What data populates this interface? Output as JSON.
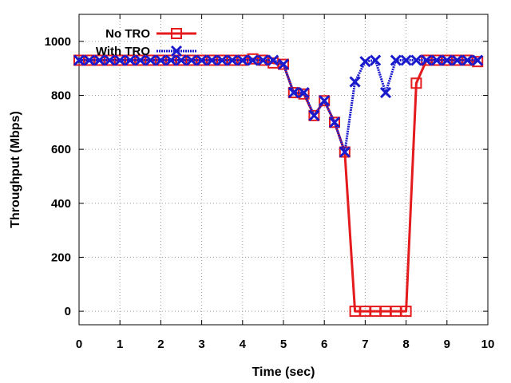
{
  "chart_data": {
    "type": "line",
    "title": "",
    "xlabel": "Time (sec)",
    "ylabel": "Throughput (Mbps)",
    "xlim": [
      0,
      10
    ],
    "ylim": [
      -50,
      1100
    ],
    "xticks": [
      0,
      1,
      2,
      3,
      4,
      5,
      6,
      7,
      8,
      9,
      10
    ],
    "yticks": [
      0,
      200,
      400,
      600,
      800,
      1000
    ],
    "grid": true,
    "legend_position": "top-left",
    "series": [
      {
        "name": "No TRO",
        "color": "#e41a1c",
        "marker": "square",
        "line_style": "solid",
        "x": [
          0,
          0.25,
          0.5,
          0.75,
          1,
          1.25,
          1.5,
          1.75,
          2,
          2.25,
          2.5,
          2.75,
          3,
          3.25,
          3.5,
          3.75,
          4,
          4.25,
          4.5,
          4.75,
          5,
          5.25,
          5.5,
          5.75,
          6,
          6.25,
          6.5,
          6.75,
          7,
          7.25,
          7.5,
          7.75,
          8,
          8.25,
          8.5,
          8.75,
          9,
          9.25,
          9.5,
          9.75
        ],
        "y": [
          930,
          930,
          930,
          930,
          930,
          930,
          930,
          930,
          930,
          930,
          930,
          930,
          930,
          930,
          930,
          930,
          930,
          935,
          930,
          920,
          915,
          810,
          805,
          725,
          780,
          700,
          590,
          0,
          0,
          0,
          0,
          0,
          0,
          845,
          930,
          930,
          930,
          930,
          930,
          925
        ]
      },
      {
        "name": "With TRO",
        "color": "#1a1acd",
        "marker": "x",
        "line_style": "dotted",
        "x": [
          0,
          0.25,
          0.5,
          0.75,
          1,
          1.25,
          1.5,
          1.75,
          2,
          2.25,
          2.5,
          2.75,
          3,
          3.25,
          3.5,
          3.75,
          4,
          4.25,
          4.5,
          4.75,
          5,
          5.25,
          5.5,
          5.75,
          6,
          6.25,
          6.5,
          6.75,
          7,
          7.25,
          7.5,
          7.75,
          8,
          8.25,
          8.5,
          8.75,
          9,
          9.25,
          9.5,
          9.75
        ],
        "y": [
          930,
          930,
          930,
          930,
          930,
          930,
          930,
          930,
          930,
          930,
          930,
          930,
          930,
          930,
          930,
          930,
          930,
          930,
          930,
          930,
          915,
          810,
          810,
          725,
          780,
          700,
          590,
          850,
          925,
          930,
          810,
          930,
          930,
          930,
          930,
          930,
          930,
          930,
          930,
          930
        ]
      }
    ]
  }
}
